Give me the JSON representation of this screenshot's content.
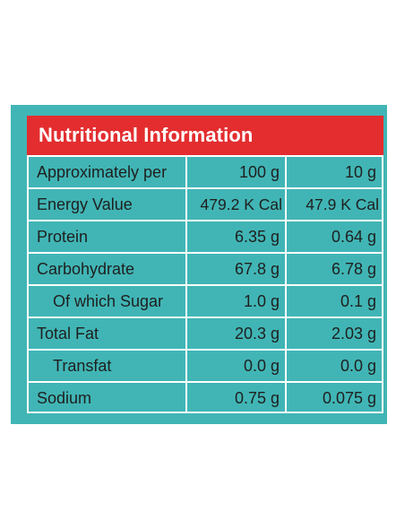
{
  "title": "Nutritional Information",
  "colors": {
    "panel_bg": "#41b5b5",
    "header_bg": "#e32d2f",
    "grid_lines": "#ffffff",
    "text": "#1f1f1f"
  },
  "rows": [
    {
      "label": "Approximately per",
      "per_100g": "100 g",
      "per_10g": "10 g"
    },
    {
      "label": "Energy Value",
      "per_100g": "479.2 K Cal",
      "per_10g": "47.9 K Cal"
    },
    {
      "label": "Protein",
      "per_100g": "6.35 g",
      "per_10g": "0.64 g"
    },
    {
      "label": "Carbohydrate",
      "per_100g": "67.8 g",
      "per_10g": "6.78 g"
    },
    {
      "label": "Of which Sugar",
      "per_100g": "1.0 g",
      "per_10g": "0.1 g"
    },
    {
      "label": "Total Fat",
      "per_100g": "20.3 g",
      "per_10g": "2.03 g"
    },
    {
      "label": "Transfat",
      "per_100g": "0.0 g",
      "per_10g": "0.0 g"
    },
    {
      "label": "Sodium",
      "per_100g": "0.75 g",
      "per_10g": "0.075 g"
    }
  ]
}
